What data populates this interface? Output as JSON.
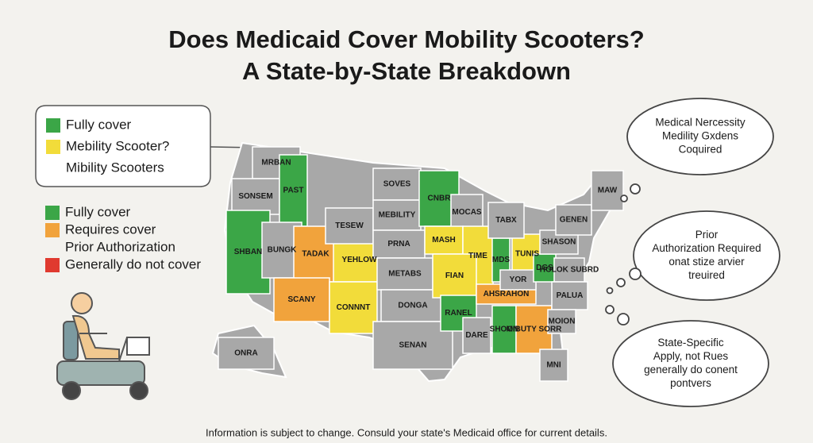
{
  "header": {
    "title_lines": [
      "Does Medicaid Cover Mobility Scooters?",
      "A State-by-State Breakdown"
    ]
  },
  "callout_legend": {
    "items": [
      {
        "lines": [
          "Fully cover"
        ],
        "color": "#3ba647"
      },
      {
        "lines": [
          "Mebility Scooter?"
        ],
        "color": "#f2dc3a"
      },
      {
        "lines": [
          "Mibility Scooters"
        ]
      }
    ]
  },
  "legend": {
    "items": [
      {
        "lines": [
          "Fully cover"
        ],
        "color": "#3ba647"
      },
      {
        "lines": [
          "Requires cover",
          "Prior Authorization"
        ],
        "color": "#f1a33c"
      },
      {
        "lines": [
          "Generally do not cover"
        ],
        "color": "#e03a2f"
      }
    ]
  },
  "map": {
    "regions": [
      {
        "label": "MRBAN",
        "color": "#a8a8a8"
      },
      {
        "label": "SONSEM",
        "color": "#a8a8a8"
      },
      {
        "label": "PAST",
        "color": "#3ba647"
      },
      {
        "label": "SHBAN",
        "color": "#3ba647"
      },
      {
        "label": "BUNGK",
        "color": "#a8a8a8"
      },
      {
        "label": "TADAK",
        "color": "#f1a33c"
      },
      {
        "label": "SCANY",
        "color": "#f1a33c"
      },
      {
        "label": "YEHLOW",
        "color": "#f2dc3a"
      },
      {
        "label": "CONNNT",
        "color": "#f2dc3a"
      },
      {
        "label": "SOVES",
        "color": "#a8a8a8"
      },
      {
        "label": "TESEW",
        "color": "#a8a8a8"
      },
      {
        "label": "MEBILITY",
        "color": "#a8a8a8"
      },
      {
        "label": "PRNA",
        "color": "#a8a8a8"
      },
      {
        "label": "METABS",
        "color": "#a8a8a8"
      },
      {
        "label": "DONGA",
        "color": "#a8a8a8"
      },
      {
        "label": "SENAN",
        "color": "#a8a8a8"
      },
      {
        "label": "CNBR",
        "color": "#3ba647"
      },
      {
        "label": "MOCAS",
        "color": "#a8a8a8"
      },
      {
        "label": "MASH",
        "color": "#f2dc3a"
      },
      {
        "label": "TIME",
        "color": "#f2dc3a"
      },
      {
        "label": "FIAN",
        "color": "#f2dc3a"
      },
      {
        "label": "RANEL",
        "color": "#3ba647"
      },
      {
        "label": "DARE",
        "color": "#a8a8a8"
      },
      {
        "label": "MDS",
        "color": "#3ba647"
      },
      {
        "label": "TUNIS",
        "color": "#f2dc3a"
      },
      {
        "label": "TABX",
        "color": "#a8a8a8"
      },
      {
        "label": "AHSRAHON",
        "color": "#f1a33c"
      },
      {
        "label": "SHOON",
        "color": "#3ba647"
      },
      {
        "label": "MIBUTY SORR",
        "color": "#f1a33c"
      },
      {
        "label": "YOR",
        "color": "#a8a8a8"
      },
      {
        "label": "DGS",
        "color": "#3ba647"
      },
      {
        "label": "HOLOK SUBRD",
        "color": "#a8a8a8"
      },
      {
        "label": "PALUA",
        "color": "#a8a8a8"
      },
      {
        "label": "MOION",
        "color": "#a8a8a8"
      },
      {
        "label": "MNI",
        "color": "#a8a8a8"
      },
      {
        "label": "SHASON",
        "color": "#a8a8a8"
      },
      {
        "label": "GENEN",
        "color": "#a8a8a8"
      },
      {
        "label": "MAW",
        "color": "#a8a8a8"
      },
      {
        "label": "ONRA",
        "color": "#a8a8a8"
      }
    ]
  },
  "bubbles": [
    {
      "lines": [
        "Medical Nercessity",
        "Medility Gxdens",
        "Coquired"
      ]
    },
    {
      "lines": [
        "Prior",
        "Authorization Required",
        "onat stize arvier",
        "treuired"
      ]
    },
    {
      "lines": [
        "State-Specific",
        "Apply, not Rues",
        "generally do conent",
        "pontvers"
      ]
    }
  ],
  "footer": "Information is subject to change. Consuld your state's Medicaid office for current details."
}
